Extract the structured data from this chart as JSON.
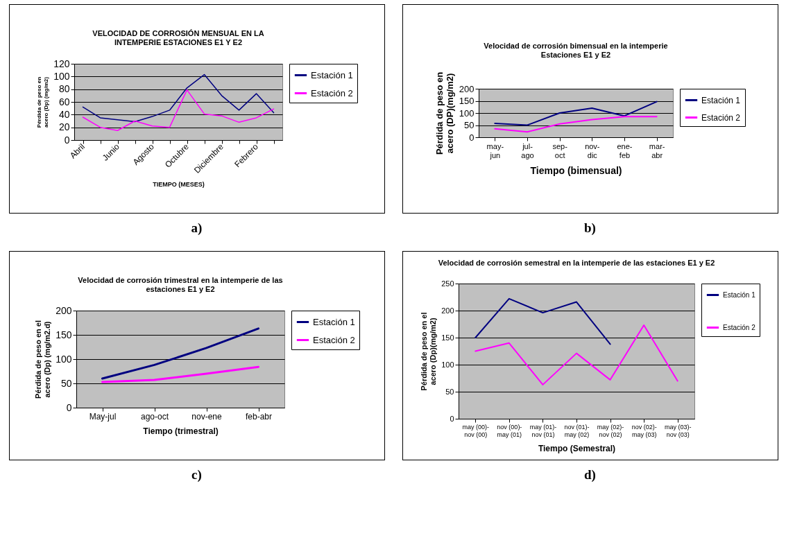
{
  "chart_data": [
    {
      "type": "line",
      "title": "VELOCIDAD DE CORROSIÓN MENSUAL EN LA INTEMPERIE ESTACIONES E1 Y E2",
      "xlabel": "TIEMPO (MESES)",
      "ylabel": "Pérdida de peso en acero (Dp) (mg/m2)",
      "categories": [
        "Abril",
        null,
        "Junio",
        null,
        "Agosto",
        null,
        "Octubre",
        null,
        "Diciembre",
        null,
        "Febrero",
        null
      ],
      "series": [
        {
          "name": "Estación 1",
          "color": "#000080",
          "values": [
            52,
            35,
            32,
            29,
            37,
            47,
            82,
            103,
            70,
            47,
            73,
            43
          ]
        },
        {
          "name": "Estación 2",
          "color": "#ff00ff",
          "values": [
            36,
            20,
            15,
            30,
            22,
            20,
            79,
            41,
            38,
            28,
            35,
            49
          ]
        }
      ],
      "ylim": [
        0,
        120
      ],
      "yticks": [
        0,
        20,
        40,
        60,
        80,
        100,
        120
      ],
      "grid": "y",
      "legend": "right",
      "annotations": [
        "a)"
      ]
    },
    {
      "type": "line",
      "title": "Velocidad de corrosión bimensual en la intemperie Estaciones E1 y E2",
      "xlabel": "Tiempo (bimensual)",
      "ylabel": "Pérdida de peso en acero (DP)(mg/m2)",
      "categories": [
        "may-jun",
        "jul-ago",
        "sep-oct",
        "nov-dic",
        "ene-feb",
        "mar-abr"
      ],
      "series": [
        {
          "name": "Estación 1",
          "color": "#000080",
          "values": [
            57,
            50,
            100,
            120,
            88,
            147
          ]
        },
        {
          "name": "Estación 2",
          "color": "#ff00ff",
          "values": [
            35,
            22,
            55,
            73,
            85,
            85
          ]
        }
      ],
      "ylim": [
        0,
        200
      ],
      "yticks": [
        0,
        50,
        100,
        150,
        200
      ],
      "grid": "y",
      "legend": "right",
      "annotations": [
        "b)"
      ]
    },
    {
      "type": "line",
      "title": "Velocidad de corrosión trimestral en la intemperie de las estaciones E1 y E2",
      "xlabel": "Tiempo (trimestral)",
      "ylabel": "Pérdida de peso en el acero (Dp) (mg/m2.d)",
      "categories": [
        "May-jul",
        "ago-oct",
        "nov-ene",
        "feb-abr"
      ],
      "series": [
        {
          "name": "Estación 1",
          "color": "#000080",
          "values": [
            60,
            88,
            123,
            163
          ]
        },
        {
          "name": "Estación 2",
          "color": "#ff00ff",
          "values": [
            53,
            57,
            70,
            84
          ]
        }
      ],
      "ylim": [
        0,
        200
      ],
      "yticks": [
        0,
        50,
        100,
        150,
        200
      ],
      "grid": "y",
      "legend": "right",
      "annotations": [
        "c)"
      ]
    },
    {
      "type": "line",
      "title": "Velocidad de corrosión semestral en la intemperie de las estaciones E1 y E2",
      "xlabel": "Tiempo (Semestral)",
      "ylabel": "Pérdida de peso en el acero (Dp)(mg/m2)",
      "categories": [
        "may (00)-nov (00)",
        "nov (00)-may (01)",
        "may (01)-nov (01)",
        "nov (01)-may (02)",
        "may (02)-nov (02)",
        "nov (02)-may (03)",
        "may (03)-nov (03)"
      ],
      "series": [
        {
          "name": "Estación 1",
          "color": "#000080",
          "values": [
            150,
            222,
            196,
            216,
            138,
            null,
            null
          ]
        },
        {
          "name": "Estación 2",
          "color": "#ff00ff",
          "values": [
            125,
            140,
            63,
            121,
            72,
            173,
            70
          ]
        }
      ],
      "ylim": [
        0,
        250
      ],
      "yticks": [
        0,
        50,
        100,
        150,
        200,
        250
      ],
      "grid": "y",
      "legend": "right",
      "annotations": [
        "d)"
      ]
    }
  ]
}
